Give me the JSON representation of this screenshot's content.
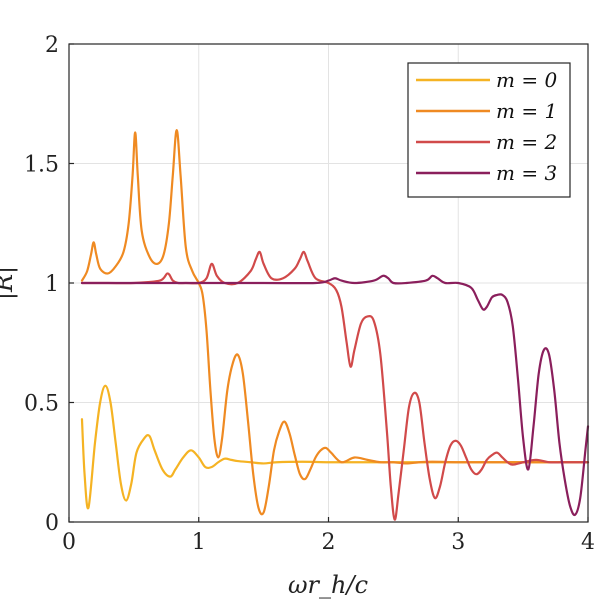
{
  "chart_data": {
    "type": "line",
    "title": "",
    "xlabel": "ωr_h/c",
    "ylabel": "|R|",
    "xlim": [
      0,
      4
    ],
    "ylim": [
      0,
      2
    ],
    "xticks": [
      "0",
      "1",
      "2",
      "3",
      "4"
    ],
    "yticks": [
      "0",
      "0.5",
      "1",
      "1.5",
      "2"
    ],
    "grid": true,
    "legend_position": "top-right",
    "series": [
      {
        "name": "m = 0",
        "color": "#f5b323",
        "x": [
          0.1,
          0.12,
          0.15,
          0.2,
          0.24,
          0.28,
          0.32,
          0.36,
          0.4,
          0.44,
          0.48,
          0.52,
          0.58,
          0.62,
          0.66,
          0.72,
          0.78,
          0.82,
          0.88,
          0.94,
          1.0,
          1.05,
          1.1,
          1.15,
          1.2,
          1.25,
          1.3,
          1.4,
          1.5,
          1.6,
          1.8,
          2.0,
          2.2,
          2.4,
          2.6,
          2.8,
          3.0,
          3.2,
          3.4,
          3.6,
          3.8,
          4.0
        ],
        "y": [
          0.43,
          0.2,
          0.06,
          0.33,
          0.5,
          0.57,
          0.5,
          0.33,
          0.16,
          0.09,
          0.16,
          0.29,
          0.35,
          0.36,
          0.3,
          0.22,
          0.19,
          0.22,
          0.27,
          0.3,
          0.27,
          0.23,
          0.23,
          0.25,
          0.265,
          0.26,
          0.255,
          0.25,
          0.245,
          0.25,
          0.252,
          0.25,
          0.25,
          0.25,
          0.25,
          0.25,
          0.25,
          0.25,
          0.25,
          0.25,
          0.25,
          0.25
        ]
      },
      {
        "name": "m = 1",
        "color": "#ef8a22",
        "x": [
          0.1,
          0.14,
          0.17,
          0.19,
          0.21,
          0.24,
          0.3,
          0.36,
          0.42,
          0.46,
          0.49,
          0.51,
          0.53,
          0.56,
          0.62,
          0.68,
          0.73,
          0.77,
          0.8,
          0.83,
          0.86,
          0.9,
          0.95,
          1.0,
          1.03,
          1.06,
          1.09,
          1.12,
          1.15,
          1.18,
          1.22,
          1.26,
          1.3,
          1.34,
          1.38,
          1.42,
          1.46,
          1.5,
          1.54,
          1.58,
          1.62,
          1.66,
          1.7,
          1.74,
          1.78,
          1.82,
          1.86,
          1.9,
          1.94,
          1.98,
          2.02,
          2.1,
          2.2,
          2.3,
          2.4,
          2.5,
          2.6,
          2.7,
          2.8,
          3.0,
          3.2,
          3.5,
          3.8,
          4.0
        ],
        "y": [
          1.01,
          1.05,
          1.12,
          1.17,
          1.12,
          1.06,
          1.04,
          1.07,
          1.13,
          1.25,
          1.45,
          1.63,
          1.45,
          1.22,
          1.11,
          1.08,
          1.12,
          1.25,
          1.45,
          1.64,
          1.45,
          1.15,
          1.05,
          1.0,
          0.95,
          0.8,
          0.55,
          0.35,
          0.27,
          0.35,
          0.55,
          0.66,
          0.7,
          0.62,
          0.42,
          0.2,
          0.06,
          0.04,
          0.15,
          0.3,
          0.38,
          0.42,
          0.37,
          0.28,
          0.2,
          0.18,
          0.22,
          0.27,
          0.3,
          0.31,
          0.29,
          0.25,
          0.27,
          0.26,
          0.25,
          0.25,
          0.245,
          0.25,
          0.252,
          0.25,
          0.25,
          0.25,
          0.25,
          0.25
        ]
      },
      {
        "name": "m = 2",
        "color": "#d14a4a",
        "x": [
          0.1,
          0.3,
          0.5,
          0.7,
          0.76,
          0.8,
          0.84,
          0.9,
          1.0,
          1.06,
          1.1,
          1.14,
          1.2,
          1.3,
          1.4,
          1.44,
          1.47,
          1.5,
          1.56,
          1.65,
          1.74,
          1.78,
          1.81,
          1.84,
          1.9,
          2.0,
          2.06,
          2.1,
          2.14,
          2.17,
          2.2,
          2.25,
          2.3,
          2.35,
          2.4,
          2.45,
          2.48,
          2.51,
          2.54,
          2.58,
          2.62,
          2.66,
          2.7,
          2.74,
          2.78,
          2.82,
          2.86,
          2.9,
          2.94,
          2.98,
          3.02,
          3.06,
          3.1,
          3.14,
          3.18,
          3.22,
          3.26,
          3.3,
          3.34,
          3.38,
          3.42,
          3.5,
          3.6,
          3.7,
          3.8,
          3.9,
          4.0
        ],
        "y": [
          1.0,
          1.0,
          1.0,
          1.01,
          1.04,
          1.01,
          1.0,
          1.0,
          1.0,
          1.02,
          1.08,
          1.03,
          1.0,
          1.0,
          1.05,
          1.1,
          1.13,
          1.08,
          1.02,
          1.02,
          1.06,
          1.1,
          1.13,
          1.09,
          1.02,
          1.0,
          0.97,
          0.9,
          0.75,
          0.65,
          0.72,
          0.83,
          0.86,
          0.84,
          0.7,
          0.38,
          0.15,
          0.01,
          0.12,
          0.3,
          0.48,
          0.54,
          0.5,
          0.33,
          0.18,
          0.1,
          0.15,
          0.25,
          0.32,
          0.34,
          0.32,
          0.27,
          0.22,
          0.2,
          0.22,
          0.26,
          0.28,
          0.29,
          0.27,
          0.25,
          0.24,
          0.25,
          0.26,
          0.25,
          0.25,
          0.25,
          0.25
        ]
      },
      {
        "name": "m = 3",
        "color": "#8a1f5c",
        "x": [
          0.1,
          0.5,
          1.0,
          1.5,
          1.9,
          2.0,
          2.05,
          2.1,
          2.2,
          2.35,
          2.42,
          2.46,
          2.5,
          2.6,
          2.75,
          2.8,
          2.84,
          2.9,
          3.0,
          3.1,
          3.15,
          3.19,
          3.22,
          3.26,
          3.3,
          3.34,
          3.38,
          3.42,
          3.46,
          3.5,
          3.54,
          3.58,
          3.62,
          3.66,
          3.7,
          3.74,
          3.78,
          3.82,
          3.86,
          3.9,
          3.94,
          3.98,
          4.0
        ],
        "y": [
          1.0,
          1.0,
          1.0,
          1.0,
          1.0,
          1.01,
          1.02,
          1.01,
          1.0,
          1.01,
          1.03,
          1.02,
          1.0,
          1.0,
          1.01,
          1.03,
          1.02,
          1.0,
          1.0,
          0.98,
          0.93,
          0.89,
          0.9,
          0.94,
          0.95,
          0.95,
          0.92,
          0.82,
          0.6,
          0.35,
          0.22,
          0.4,
          0.62,
          0.72,
          0.7,
          0.55,
          0.33,
          0.18,
          0.07,
          0.03,
          0.1,
          0.3,
          0.4
        ]
      }
    ]
  }
}
